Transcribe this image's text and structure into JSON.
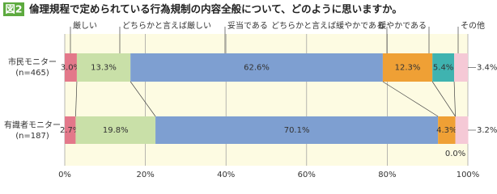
{
  "chart_data": {
    "type": "stacked-bar-horizontal",
    "figure_label": "図2",
    "title": "倫理規程で定められている行為規制の内容全般について、どのように思いますか。",
    "categories": [
      "市民モニター",
      "有識者モニター"
    ],
    "category_notes": [
      "(n=465)",
      "(n=187)"
    ],
    "series": [
      {
        "name": "厳しい",
        "color": "#e3788a",
        "values": [
          3.0,
          2.7
        ],
        "value_labels": [
          "3.0%",
          "2.7%"
        ]
      },
      {
        "name": "どちらかと言えば厳しい",
        "color": "#c9e0a8",
        "values": [
          13.3,
          19.8
        ],
        "value_labels": [
          "13.3%",
          "19.8%"
        ]
      },
      {
        "name": "妥当である",
        "color": "#7e9fd1",
        "values": [
          62.6,
          70.1
        ],
        "value_labels": [
          "62.6%",
          "70.1%"
        ]
      },
      {
        "name": "どちらかと言えば緩やかである",
        "color": "#efa035",
        "values": [
          12.3,
          4.3
        ],
        "value_labels": [
          "12.3%",
          "4.3%"
        ]
      },
      {
        "name": "緩やかである",
        "color": "#3fb3b0",
        "values": [
          5.4,
          0.0
        ],
        "value_labels": [
          "5.4%",
          "0.0%"
        ]
      },
      {
        "name": "その他",
        "color": "#f5c9d6",
        "values": [
          3.4,
          3.2
        ],
        "value_labels": [
          "3.4%",
          "3.2%"
        ]
      }
    ],
    "xlim": [
      0,
      100
    ],
    "xticks": [
      {
        "value": 0,
        "label": "0%"
      },
      {
        "value": 20,
        "label": "20%"
      },
      {
        "value": 40,
        "label": "40%"
      },
      {
        "value": 60,
        "label": "60%"
      },
      {
        "value": 80,
        "label": "80%"
      },
      {
        "value": 100,
        "label": "100%"
      }
    ],
    "grid": true
  }
}
